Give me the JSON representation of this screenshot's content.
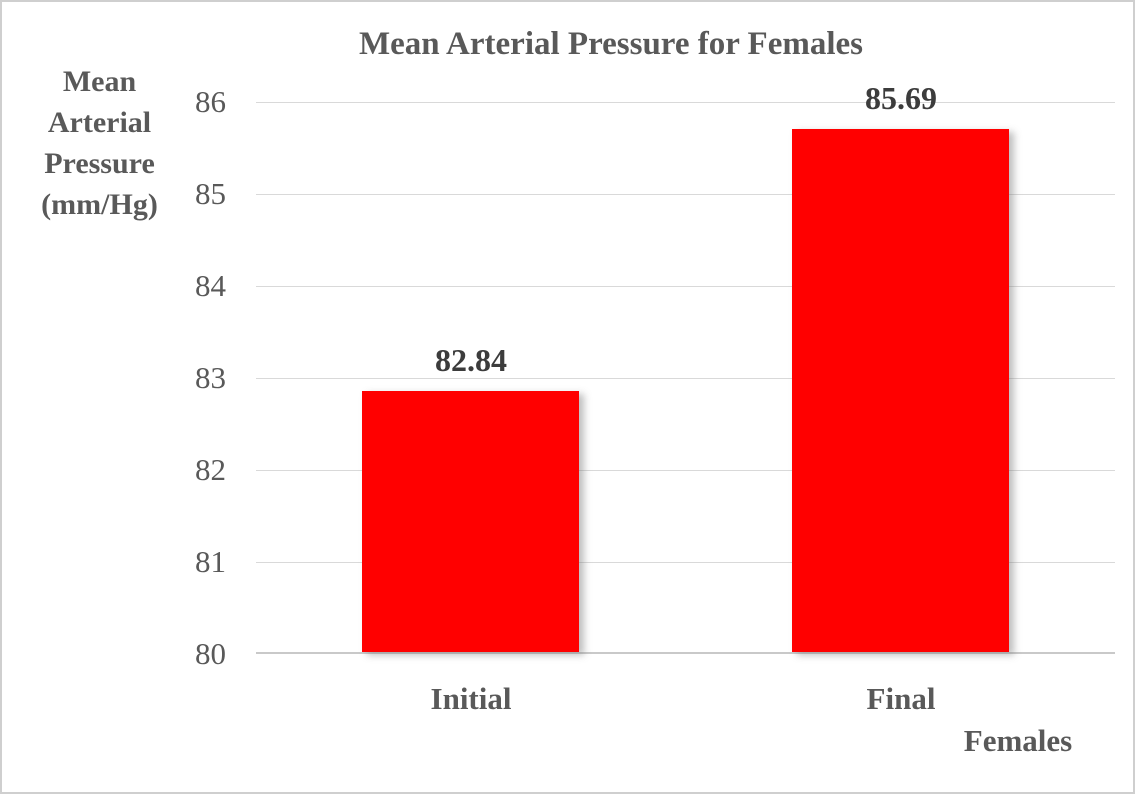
{
  "chart_data": {
    "type": "bar",
    "title": "Mean Arterial Pressure for Females",
    "categories": [
      "Initial",
      "Final"
    ],
    "values": [
      82.84,
      85.69
    ],
    "data_labels": [
      "82.84",
      "85.69"
    ],
    "xlabel": "Females",
    "ylabel": "Mean Arterial Pressure (mm/Hg)",
    "ylabel_lines": [
      "Mean",
      "Arterial",
      "Pressure",
      "(mm/Hg)"
    ],
    "ylim": [
      80,
      86
    ],
    "ytick_step": 1,
    "yticks": [
      "86",
      "85",
      "84",
      "83",
      "82",
      "81",
      "80"
    ],
    "grid": true,
    "legend_position": "none",
    "colors": {
      "bar": "#ff0000",
      "text": "#595959",
      "data_label": "#3c3c3c",
      "gridline": "#d9d9d9",
      "axis_line": "#c9c9c9"
    }
  }
}
